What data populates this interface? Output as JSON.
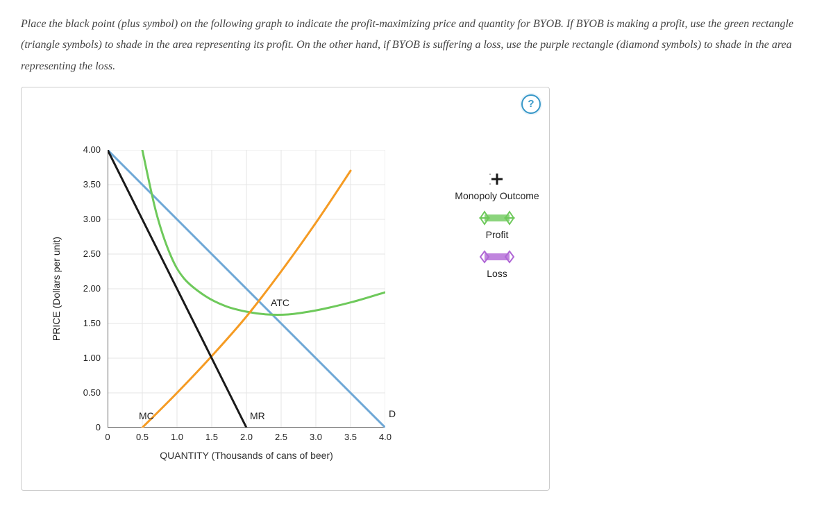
{
  "instructions": "Place the black point (plus symbol) on the following graph to indicate the profit-maximizing price and quantity for BYOB. If BYOB is making a profit, use the green rectangle (triangle symbols) to shade in the area representing its profit. On the other hand, if BYOB is suffering a loss, use the purple rectangle (diamond symbols) to shade in the area representing the loss.",
  "help_label": "?",
  "chart": {
    "type": "line-economics",
    "x_axis": {
      "label": "QUANTITY (Thousands of cans of beer)",
      "min": 0,
      "max": 4.0,
      "ticks": [
        0,
        0.5,
        1.0,
        1.5,
        2.0,
        2.5,
        3.0,
        3.5,
        4.0
      ],
      "tick_labels": [
        "0",
        "0.5",
        "1.0",
        "1.5",
        "2.0",
        "2.5",
        "3.0",
        "3.5",
        "4.0"
      ]
    },
    "y_axis": {
      "label": "PRICE (Dollars per unit)",
      "min": 0,
      "max": 4.0,
      "ticks": [
        0,
        0.5,
        1.0,
        1.5,
        2.0,
        2.5,
        3.0,
        3.5,
        4.0
      ],
      "tick_labels": [
        "0",
        "0.50",
        "1.00",
        "1.50",
        "2.00",
        "2.50",
        "3.00",
        "3.50",
        "4.00"
      ]
    },
    "grid_color": "#e6e6e6",
    "background_color": "#ffffff",
    "curves": {
      "demand": {
        "label": "D",
        "color": "#6fa8d6",
        "width": 3,
        "points": [
          [
            0,
            4.0
          ],
          [
            4.0,
            0.0
          ]
        ],
        "label_pos": [
          4.05,
          0.15
        ]
      },
      "marginal_revenue": {
        "label": "MR",
        "color": "#1a1a1a",
        "width": 3,
        "points": [
          [
            0,
            4.0
          ],
          [
            2.0,
            0.0
          ]
        ],
        "label_pos": [
          2.05,
          0.12
        ]
      },
      "marginal_cost": {
        "label": "MC",
        "color": "#f59b23",
        "width": 3,
        "points": [
          [
            0.5,
            0.0
          ],
          [
            1.0,
            0.5
          ],
          [
            1.5,
            1.03
          ],
          [
            2.0,
            1.6
          ],
          [
            2.5,
            2.25
          ],
          [
            3.0,
            2.95
          ],
          [
            3.5,
            3.7
          ]
        ],
        "label_pos": [
          0.45,
          0.12
        ]
      },
      "average_total_cost": {
        "label": "ATC",
        "color": "#6ec95b",
        "width": 3,
        "points": [
          [
            0.5,
            4.0
          ],
          [
            0.7,
            3.1
          ],
          [
            0.9,
            2.5
          ],
          [
            1.1,
            2.15
          ],
          [
            1.4,
            1.9
          ],
          [
            1.7,
            1.75
          ],
          [
            2.0,
            1.67
          ],
          [
            2.3,
            1.63
          ],
          [
            2.6,
            1.63
          ],
          [
            2.9,
            1.67
          ],
          [
            3.2,
            1.73
          ],
          [
            3.6,
            1.83
          ],
          [
            4.0,
            1.95
          ]
        ],
        "label_pos": [
          2.35,
          1.75
        ]
      }
    }
  },
  "legend": {
    "monopoly": {
      "label": "Monopoly Outcome",
      "color": "#1a1a1a"
    },
    "profit": {
      "label": "Profit",
      "color": "#6ec95b"
    },
    "loss": {
      "label": "Loss",
      "color": "#b067d6"
    }
  }
}
